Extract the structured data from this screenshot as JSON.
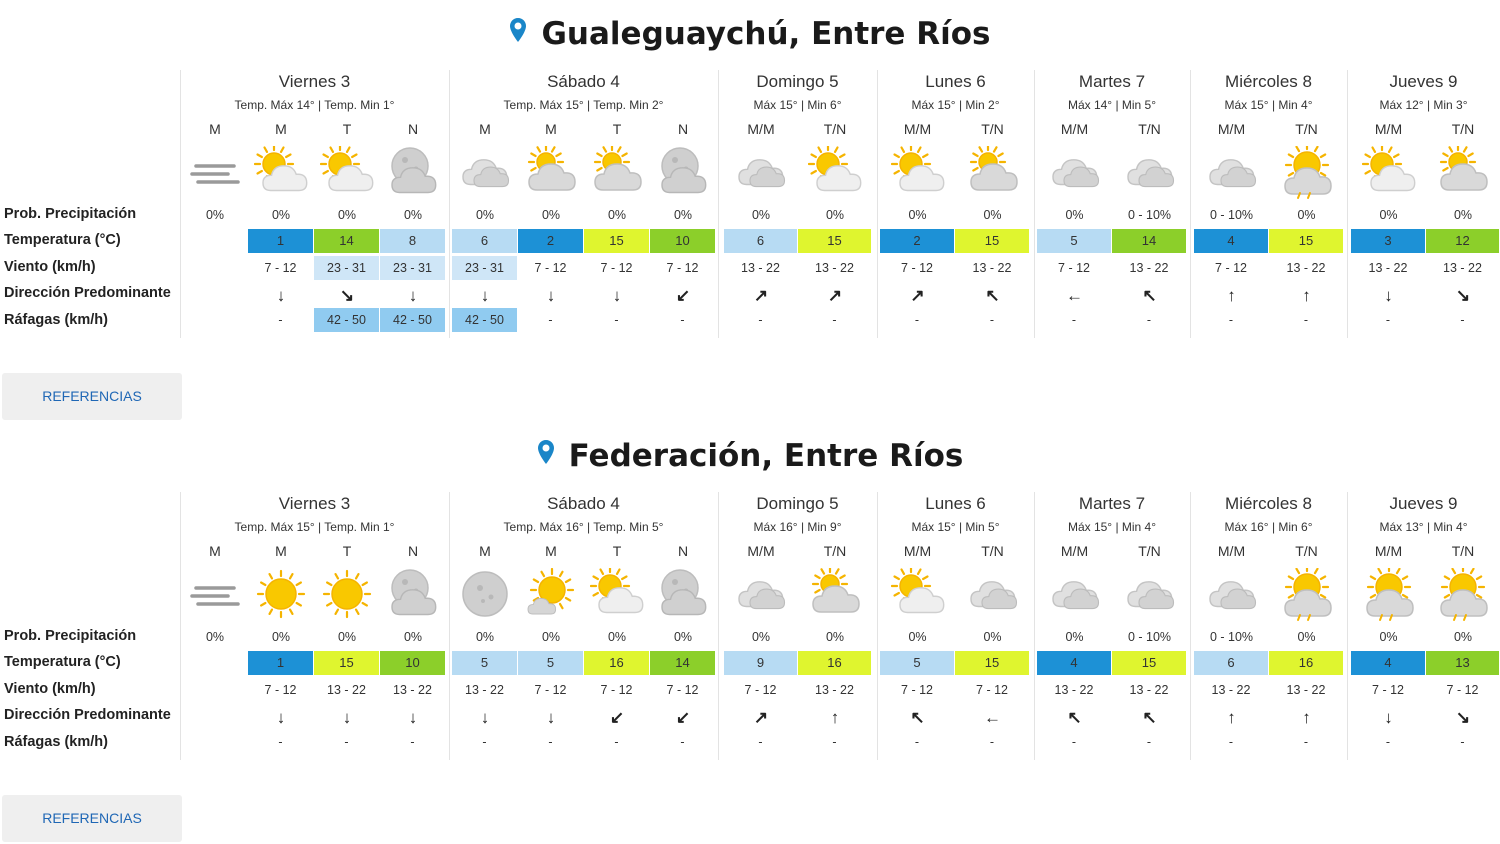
{
  "colors": {
    "accent": "#1f67b5",
    "pin": "#1a86c8",
    "temp_scale": {
      "cold": "#1d91d6",
      "cool": "#b7dbf3",
      "mild": "#dff52f",
      "warm": "#8ccf2a"
    },
    "gust_bg": "#90cbf0",
    "wind_bg": "#cfe6f7"
  },
  "labels": {
    "precip": "Prob. Precipitación",
    "temp": "Temperatura (°C)",
    "wind": "Viento (km/h)",
    "direction": "Dirección Predominante",
    "gusts": "Ráfagas (km/h)"
  },
  "locations": [
    {
      "name": "Gualeguaychú, Entre Ríos",
      "references_label": "REFERENCIAS",
      "days": [
        {
          "name": "Viernes 3",
          "sub": "Temp. Máx 14° | Temp. Min 1°",
          "periods": [
            {
              "label": "M",
              "icon": "mist",
              "prob": "0%",
              "temp": "",
              "wind": "",
              "dir": "",
              "gust": ""
            },
            {
              "label": "M",
              "icon": "partly-sunny",
              "prob": "0%",
              "temp": "1",
              "temp_level": "cold",
              "wind": "7 - 12",
              "dir": "↓",
              "gust": "-"
            },
            {
              "label": "T",
              "icon": "partly-sunny",
              "prob": "0%",
              "temp": "14",
              "temp_level": "warm",
              "wind": "23 - 31",
              "wind_hl": true,
              "dir": "↘",
              "gust": "42 - 50",
              "gust_hl": true
            },
            {
              "label": "N",
              "icon": "moon-cloud",
              "prob": "0%",
              "temp": "8",
              "temp_level": "cool",
              "wind": "23 - 31",
              "wind_hl": true,
              "dir": "↓",
              "gust": "42 - 50",
              "gust_hl": true
            }
          ]
        },
        {
          "name": "Sábado 4",
          "sub": "Temp. Máx 15° | Temp. Min 2°",
          "periods": [
            {
              "label": "M",
              "icon": "cloudy",
              "prob": "0%",
              "temp": "6",
              "temp_level": "cool",
              "wind": "23 - 31",
              "wind_hl": true,
              "dir": "↓",
              "gust": "42 - 50",
              "gust_hl": true
            },
            {
              "label": "M",
              "icon": "partly-cloudy",
              "prob": "0%",
              "temp": "2",
              "temp_level": "cold",
              "wind": "7 - 12",
              "dir": "↓",
              "gust": "-"
            },
            {
              "label": "T",
              "icon": "partly-cloudy",
              "prob": "0%",
              "temp": "15",
              "temp_level": "mild",
              "wind": "7 - 12",
              "dir": "↓",
              "gust": "-"
            },
            {
              "label": "N",
              "icon": "moon-cloud",
              "prob": "0%",
              "temp": "10",
              "temp_level": "warm",
              "wind": "7 - 12",
              "dir": "↙",
              "gust": "-"
            }
          ]
        },
        {
          "name": "Domingo 5",
          "sub": "Máx 15° | Min 6°",
          "periods": [
            {
              "label": "M/M",
              "icon": "cloudy",
              "prob": "0%",
              "temp": "6",
              "temp_level": "cool",
              "wind": "13 - 22",
              "dir": "↗",
              "gust": "-"
            },
            {
              "label": "T/N",
              "icon": "partly-sunny",
              "prob": "0%",
              "temp": "15",
              "temp_level": "mild",
              "wind": "13 - 22",
              "dir": "↗",
              "gust": "-"
            }
          ]
        },
        {
          "name": "Lunes 6",
          "sub": "Máx 15° | Min 2°",
          "periods": [
            {
              "label": "M/M",
              "icon": "partly-sunny",
              "prob": "0%",
              "temp": "2",
              "temp_level": "cold",
              "wind": "7 - 12",
              "dir": "↗",
              "gust": "-"
            },
            {
              "label": "T/N",
              "icon": "partly-cloudy",
              "prob": "0%",
              "temp": "15",
              "temp_level": "mild",
              "wind": "13 - 22",
              "dir": "↖",
              "gust": "-"
            }
          ]
        },
        {
          "name": "Martes 7",
          "sub": "Máx 14° | Min 5°",
          "periods": [
            {
              "label": "M/M",
              "icon": "cloudy",
              "prob": "0%",
              "temp": "5",
              "temp_level": "cool",
              "wind": "7 - 12",
              "dir": "←",
              "gust": "-"
            },
            {
              "label": "T/N",
              "icon": "cloudy",
              "prob": "0 - 10%",
              "temp": "14",
              "temp_level": "warm",
              "wind": "13 - 22",
              "dir": "↖",
              "gust": "-"
            }
          ]
        },
        {
          "name": "Miércoles 8",
          "sub": "Máx 15° | Min 4°",
          "periods": [
            {
              "label": "M/M",
              "icon": "cloudy",
              "prob": "0 - 10%",
              "temp": "4",
              "temp_level": "cold",
              "wind": "7 - 12",
              "dir": "↑",
              "gust": "-"
            },
            {
              "label": "T/N",
              "icon": "sun-rain",
              "prob": "0%",
              "temp": "15",
              "temp_level": "mild",
              "wind": "13 - 22",
              "dir": "↑",
              "gust": "-"
            }
          ]
        },
        {
          "name": "Jueves 9",
          "sub": "Máx 12° | Min 3°",
          "periods": [
            {
              "label": "M/M",
              "icon": "partly-sunny",
              "prob": "0%",
              "temp": "3",
              "temp_level": "cold",
              "wind": "13 - 22",
              "dir": "↓",
              "gust": "-"
            },
            {
              "label": "T/N",
              "icon": "partly-cloudy",
              "prob": "0%",
              "temp": "12",
              "temp_level": "warm",
              "wind": "13 - 22",
              "dir": "↘",
              "gust": "-"
            }
          ]
        }
      ]
    },
    {
      "name": "Federación, Entre Ríos",
      "references_label": "REFERENCIAS",
      "days": [
        {
          "name": "Viernes 3",
          "sub": "Temp. Máx 15° | Temp. Min 1°",
          "periods": [
            {
              "label": "M",
              "icon": "mist",
              "prob": "0%",
              "temp": "",
              "wind": "",
              "dir": "",
              "gust": ""
            },
            {
              "label": "M",
              "icon": "sunny",
              "prob": "0%",
              "temp": "1",
              "temp_level": "cold",
              "wind": "7 - 12",
              "dir": "↓",
              "gust": "-"
            },
            {
              "label": "T",
              "icon": "sunny",
              "prob": "0%",
              "temp": "15",
              "temp_level": "mild",
              "wind": "13 - 22",
              "dir": "↓",
              "gust": "-"
            },
            {
              "label": "N",
              "icon": "moon-cloud",
              "prob": "0%",
              "temp": "10",
              "temp_level": "warm",
              "wind": "13 - 22",
              "dir": "↓",
              "gust": "-"
            }
          ]
        },
        {
          "name": "Sábado 4",
          "sub": "Temp. Máx 16° | Temp. Min 5°",
          "periods": [
            {
              "label": "M",
              "icon": "moon",
              "prob": "0%",
              "temp": "5",
              "temp_level": "cool",
              "wind": "13 - 22",
              "dir": "↓",
              "gust": "-"
            },
            {
              "label": "M",
              "icon": "sunny-cloud",
              "prob": "0%",
              "temp": "5",
              "temp_level": "cool",
              "wind": "7 - 12",
              "dir": "↓",
              "gust": "-"
            },
            {
              "label": "T",
              "icon": "partly-sunny",
              "prob": "0%",
              "temp": "16",
              "temp_level": "mild",
              "wind": "7 - 12",
              "dir": "↙",
              "gust": "-"
            },
            {
              "label": "N",
              "icon": "moon-cloud",
              "prob": "0%",
              "temp": "14",
              "temp_level": "warm",
              "wind": "7 - 12",
              "dir": "↙",
              "gust": "-"
            }
          ]
        },
        {
          "name": "Domingo 5",
          "sub": "Máx 16° | Min 9°",
          "periods": [
            {
              "label": "M/M",
              "icon": "cloudy",
              "prob": "0%",
              "temp": "9",
              "temp_level": "cool",
              "wind": "7 - 12",
              "dir": "↗",
              "gust": "-"
            },
            {
              "label": "T/N",
              "icon": "partly-cloudy",
              "prob": "0%",
              "temp": "16",
              "temp_level": "mild",
              "wind": "13 - 22",
              "dir": "↑",
              "gust": "-"
            }
          ]
        },
        {
          "name": "Lunes 6",
          "sub": "Máx 15° | Min 5°",
          "periods": [
            {
              "label": "M/M",
              "icon": "partly-sunny",
              "prob": "0%",
              "temp": "5",
              "temp_level": "cool",
              "wind": "7 - 12",
              "dir": "↖",
              "gust": "-"
            },
            {
              "label": "T/N",
              "icon": "cloudy",
              "prob": "0%",
              "temp": "15",
              "temp_level": "mild",
              "wind": "7 - 12",
              "dir": "←",
              "gust": "-"
            }
          ]
        },
        {
          "name": "Martes 7",
          "sub": "Máx 15° | Min 4°",
          "periods": [
            {
              "label": "M/M",
              "icon": "cloudy",
              "prob": "0%",
              "temp": "4",
              "temp_level": "cold",
              "wind": "13 - 22",
              "dir": "↖",
              "gust": "-"
            },
            {
              "label": "T/N",
              "icon": "cloudy",
              "prob": "0 - 10%",
              "temp": "15",
              "temp_level": "mild",
              "wind": "13 - 22",
              "dir": "↖",
              "gust": "-"
            }
          ]
        },
        {
          "name": "Miércoles 8",
          "sub": "Máx 16° | Min 6°",
          "periods": [
            {
              "label": "M/M",
              "icon": "cloudy",
              "prob": "0 - 10%",
              "temp": "6",
              "temp_level": "cool",
              "wind": "13 - 22",
              "dir": "↑",
              "gust": "-"
            },
            {
              "label": "T/N",
              "icon": "sun-rain",
              "prob": "0%",
              "temp": "16",
              "temp_level": "mild",
              "wind": "13 - 22",
              "dir": "↑",
              "gust": "-"
            }
          ]
        },
        {
          "name": "Jueves 9",
          "sub": "Máx 13° | Min 4°",
          "periods": [
            {
              "label": "M/M",
              "icon": "sun-rain",
              "prob": "0%",
              "temp": "4",
              "temp_level": "cold",
              "wind": "7 - 12",
              "dir": "↓",
              "gust": "-"
            },
            {
              "label": "T/N",
              "icon": "sun-rain",
              "prob": "0%",
              "temp": "13",
              "temp_level": "warm",
              "wind": "7 - 12",
              "dir": "↘",
              "gust": "-"
            }
          ]
        }
      ]
    }
  ]
}
